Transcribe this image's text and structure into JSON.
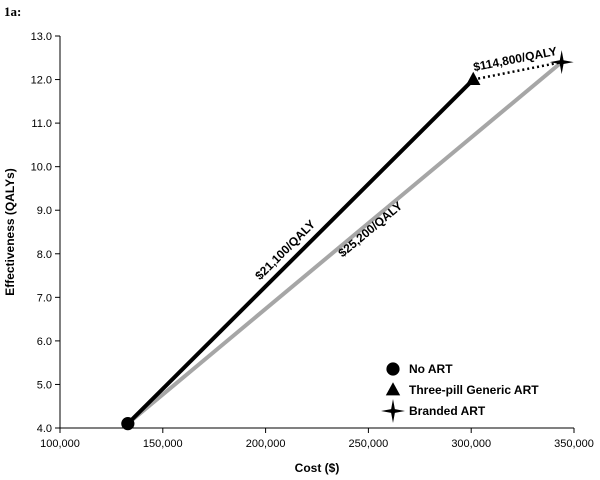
{
  "figure_label": "1a:",
  "chart_data": {
    "type": "line",
    "xlabel": "Cost ($)",
    "ylabel": "Effectiveness (QALYs)",
    "xlim": [
      100000,
      350000
    ],
    "ylim": [
      4.0,
      13.0
    ],
    "x_ticks": [
      {
        "value": 100000,
        "label": "100,000"
      },
      {
        "value": 150000,
        "label": "150,000"
      },
      {
        "value": 200000,
        "label": "200,000"
      },
      {
        "value": 250000,
        "label": "250,000"
      },
      {
        "value": 300000,
        "label": "300,000"
      },
      {
        "value": 350000,
        "label": "350,000"
      }
    ],
    "y_ticks": [
      {
        "value": 4,
        "label": "4.0"
      },
      {
        "value": 5,
        "label": "5.0"
      },
      {
        "value": 6,
        "label": "6.0"
      },
      {
        "value": 7,
        "label": "7.0"
      },
      {
        "value": 8,
        "label": "8.0"
      },
      {
        "value": 9,
        "label": "9.0"
      },
      {
        "value": 10,
        "label": "10.0"
      },
      {
        "value": 11,
        "label": "11.0"
      },
      {
        "value": 12,
        "label": "12.0"
      },
      {
        "value": 13,
        "label": "13.0"
      }
    ],
    "grid": false,
    "legend_position": "bottom-right",
    "points": [
      {
        "name": "No ART",
        "marker": "circle",
        "x": 133000,
        "y": 4.1
      },
      {
        "name": "Three-pill Generic ART",
        "marker": "triangle",
        "x": 301000,
        "y": 12.0
      },
      {
        "name": "Branded ART",
        "marker": "star",
        "x": 344000,
        "y": 12.4
      }
    ],
    "segments": [
      {
        "from": 0,
        "to": 1,
        "color": "#000000",
        "style": "solid",
        "label": "$21,100/QALY"
      },
      {
        "from": 0,
        "to": 2,
        "color": "#a6a6a6",
        "style": "solid",
        "label": "$25,200/QALY"
      },
      {
        "from": 1,
        "to": 2,
        "color": "#000000",
        "style": "dotted",
        "label": "$114,800/QALY"
      }
    ]
  }
}
